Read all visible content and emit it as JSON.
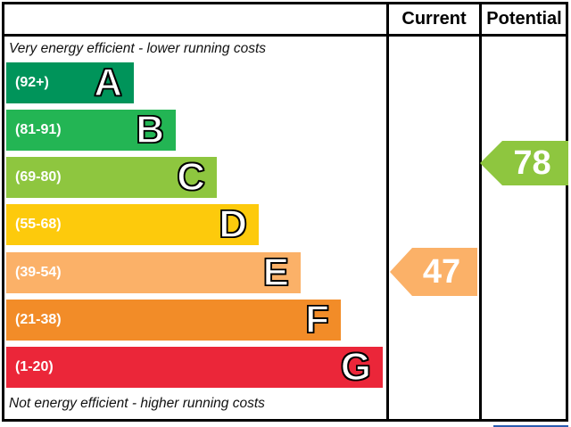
{
  "header": {
    "current_label": "Current",
    "potential_label": "Potential"
  },
  "captions": {
    "top": "Very energy efficient - lower running costs",
    "bottom": "Not energy efficient - higher running costs"
  },
  "chart_data": {
    "type": "bar",
    "title": "Energy efficiency rating chart (EPC style)",
    "orientation": "horizontal",
    "categories": [
      "A",
      "B",
      "C",
      "D",
      "E",
      "F",
      "G"
    ],
    "bands": [
      {
        "letter": "A",
        "range_label": "(92+)",
        "score_min": 92,
        "score_max": 100,
        "color": "#00945a"
      },
      {
        "letter": "B",
        "range_label": "(81-91)",
        "score_min": 81,
        "score_max": 91,
        "color": "#23b554"
      },
      {
        "letter": "C",
        "range_label": "(69-80)",
        "score_min": 69,
        "score_max": 80,
        "color": "#8ec63f"
      },
      {
        "letter": "D",
        "range_label": "(55-68)",
        "score_min": 55,
        "score_max": 68,
        "color": "#fdca0c"
      },
      {
        "letter": "E",
        "range_label": "(39-54)",
        "score_min": 39,
        "score_max": 54,
        "color": "#fbb168"
      },
      {
        "letter": "F",
        "range_label": "(21-38)",
        "score_min": 21,
        "score_max": 38,
        "color": "#f28c28"
      },
      {
        "letter": "G",
        "range_label": "(1-20)",
        "score_min": 1,
        "score_max": 20,
        "color": "#eb2639"
      }
    ],
    "current": {
      "value": "47",
      "band": "E",
      "arrow_color": "#fbb168"
    },
    "potential": {
      "value": "78",
      "band": "C",
      "arrow_color": "#8ec63f"
    },
    "legend_position": "none",
    "grid": false
  },
  "colors": {
    "table_border": "#000000",
    "bottom_strip_blue": "#2a5db0"
  }
}
